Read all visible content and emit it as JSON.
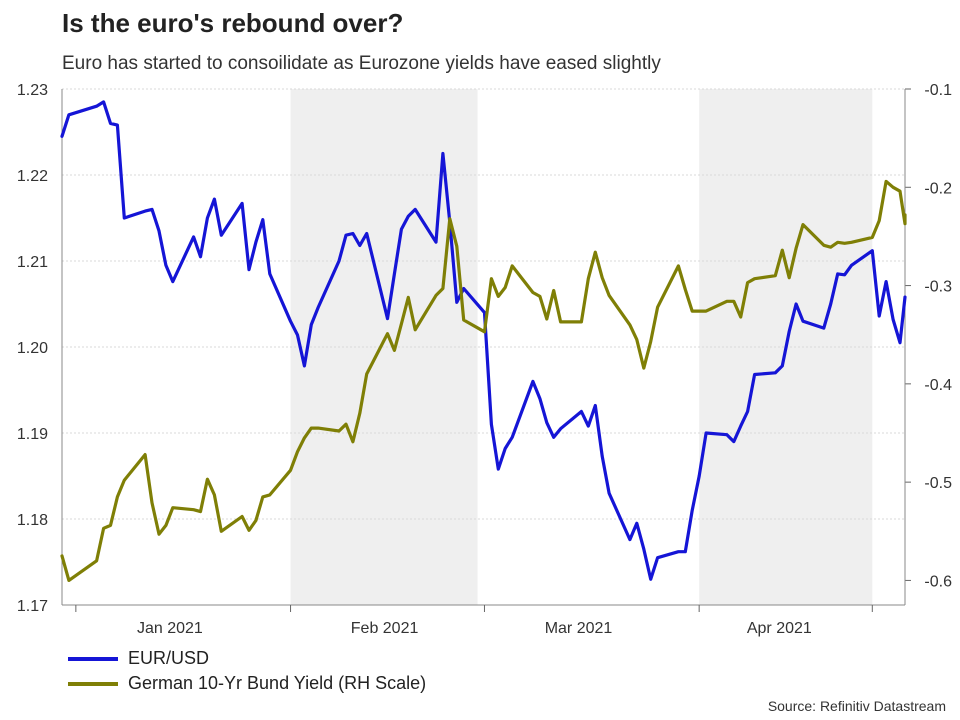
{
  "title": "Is the euro's rebound over?",
  "subtitle": "Euro has started to consoilidate as Eurozone yields have eased slightly",
  "source": "Source: Refinitiv Datastream",
  "colors": {
    "eurusd": "#1515d6",
    "bund": "#7f7f06",
    "shade": "#efefef",
    "grid": "#d9d9d9"
  },
  "chart_data": {
    "type": "line",
    "title": "Is the euro's rebound over?",
    "legend_position": "bottom-left",
    "grid": true,
    "x_labels": [
      "Jan 2021",
      "Feb 2021",
      "Mar 2021",
      "Apr 2021"
    ],
    "x_range": [
      "2020-12-30",
      "2021-04-30"
    ],
    "shaded_months": [
      [
        "2021-02-01",
        "2021-02-28"
      ],
      [
        "2021-04-01",
        "2021-04-26"
      ]
    ],
    "y_left": {
      "ticks": [
        "1.17",
        "1.18",
        "1.19",
        "1.20",
        "1.21",
        "1.22",
        "1.23"
      ],
      "range": [
        1.17,
        1.23
      ]
    },
    "y_right": {
      "ticks": [
        "-0.6",
        "-0.5",
        "-0.4",
        "-0.3",
        "-0.2",
        "-0.1"
      ],
      "range": [
        -0.625,
        -0.1
      ]
    },
    "series": [
      {
        "name": "EUR/USD",
        "axis": "left",
        "points": [
          [
            "2020-12-30",
            1.2245
          ],
          [
            "2020-12-31",
            1.227
          ],
          [
            "2021-01-04",
            1.228
          ],
          [
            "2021-01-05",
            1.2285
          ],
          [
            "2021-01-06",
            1.226
          ],
          [
            "2021-01-07",
            1.2258
          ],
          [
            "2021-01-08",
            1.215
          ],
          [
            "2021-01-11",
            1.2158
          ],
          [
            "2021-01-12",
            1.216
          ],
          [
            "2021-01-13",
            1.2135
          ],
          [
            "2021-01-14",
            1.2095
          ],
          [
            "2021-01-15",
            1.2076
          ],
          [
            "2021-01-18",
            1.2128
          ],
          [
            "2021-01-19",
            1.2105
          ],
          [
            "2021-01-20",
            1.215
          ],
          [
            "2021-01-21",
            1.2172
          ],
          [
            "2021-01-22",
            1.213
          ],
          [
            "2021-01-25",
            1.2167
          ],
          [
            "2021-01-26",
            1.209
          ],
          [
            "2021-01-27",
            1.2122
          ],
          [
            "2021-01-28",
            1.2148
          ],
          [
            "2021-01-29",
            1.2085
          ],
          [
            "2021-02-01",
            1.203
          ],
          [
            "2021-02-02",
            1.2014
          ],
          [
            "2021-02-03",
            1.1978
          ],
          [
            "2021-02-04",
            1.2026
          ],
          [
            "2021-02-05",
            1.2046
          ],
          [
            "2021-02-08",
            1.21
          ],
          [
            "2021-02-09",
            1.213
          ],
          [
            "2021-02-10",
            1.2132
          ],
          [
            "2021-02-11",
            1.2118
          ],
          [
            "2021-02-12",
            1.2132
          ],
          [
            "2021-02-15",
            1.2033
          ],
          [
            "2021-02-16",
            1.2085
          ],
          [
            "2021-02-17",
            1.2137
          ],
          [
            "2021-02-18",
            1.2152
          ],
          [
            "2021-02-19",
            1.216
          ],
          [
            "2021-02-22",
            1.2122
          ],
          [
            "2021-02-23",
            1.2225
          ],
          [
            "2021-02-24",
            1.2145
          ],
          [
            "2021-02-25",
            1.2052
          ],
          [
            "2021-02-26",
            1.2068
          ],
          [
            "2021-03-01",
            1.204
          ],
          [
            "2021-03-02",
            1.191
          ],
          [
            "2021-03-03",
            1.1858
          ],
          [
            "2021-03-04",
            1.1882
          ],
          [
            "2021-03-05",
            1.1895
          ],
          [
            "2021-03-08",
            1.196
          ],
          [
            "2021-03-09",
            1.194
          ],
          [
            "2021-03-10",
            1.1912
          ],
          [
            "2021-03-11",
            1.1895
          ],
          [
            "2021-03-12",
            1.1905
          ],
          [
            "2021-03-15",
            1.1925
          ],
          [
            "2021-03-16",
            1.1908
          ],
          [
            "2021-03-17",
            1.1932
          ],
          [
            "2021-03-18",
            1.1873
          ],
          [
            "2021-03-19",
            1.183
          ],
          [
            "2021-03-22",
            1.1776
          ],
          [
            "2021-03-23",
            1.1795
          ],
          [
            "2021-03-24",
            1.1765
          ],
          [
            "2021-03-25",
            1.173
          ],
          [
            "2021-03-26",
            1.1755
          ],
          [
            "2021-03-29",
            1.1762
          ],
          [
            "2021-03-30",
            1.1762
          ],
          [
            "2021-03-31",
            1.181
          ],
          [
            "2021-04-01",
            1.185
          ],
          [
            "2021-04-02",
            1.19
          ],
          [
            "2021-04-05",
            1.1898
          ],
          [
            "2021-04-06",
            1.189
          ],
          [
            "2021-04-07",
            1.1908
          ],
          [
            "2021-04-08",
            1.1925
          ],
          [
            "2021-04-09",
            1.1968
          ],
          [
            "2021-04-12",
            1.197
          ],
          [
            "2021-04-13",
            1.1978
          ],
          [
            "2021-04-14",
            1.2018
          ],
          [
            "2021-04-15",
            1.205
          ],
          [
            "2021-04-16",
            1.203
          ],
          [
            "2021-04-19",
            1.2022
          ],
          [
            "2021-04-20",
            1.205
          ],
          [
            "2021-04-21",
            1.2085
          ],
          [
            "2021-04-22",
            1.2084
          ],
          [
            "2021-04-23",
            1.2095
          ],
          [
            "2021-04-26",
            1.2112
          ],
          [
            "2021-04-27",
            1.2036
          ],
          [
            "2021-04-28",
            1.2076
          ],
          [
            "2021-04-29",
            1.2032
          ],
          [
            "2021-04-30",
            1.2005
          ],
          [
            "2021-05-03",
            1.2058
          ]
        ]
      },
      {
        "name": "German 10-Yr Bund Yield (RH Scale)",
        "axis": "right",
        "points": [
          [
            "2020-12-30",
            -0.575
          ],
          [
            "2020-12-31",
            -0.6
          ],
          [
            "2021-01-04",
            -0.58
          ],
          [
            "2021-01-05",
            -0.547
          ],
          [
            "2021-01-06",
            -0.544
          ],
          [
            "2021-01-07",
            -0.515
          ],
          [
            "2021-01-08",
            -0.498
          ],
          [
            "2021-01-11",
            -0.472
          ],
          [
            "2021-01-12",
            -0.521
          ],
          [
            "2021-01-13",
            -0.553
          ],
          [
            "2021-01-14",
            -0.544
          ],
          [
            "2021-01-15",
            -0.526
          ],
          [
            "2021-01-18",
            -0.528
          ],
          [
            "2021-01-19",
            -0.53
          ],
          [
            "2021-01-20",
            -0.497
          ],
          [
            "2021-01-21",
            -0.513
          ],
          [
            "2021-01-22",
            -0.55
          ],
          [
            "2021-01-25",
            -0.535
          ],
          [
            "2021-01-26",
            -0.549
          ],
          [
            "2021-01-27",
            -0.539
          ],
          [
            "2021-01-28",
            -0.515
          ],
          [
            "2021-01-29",
            -0.513
          ],
          [
            "2021-02-01",
            -0.488
          ],
          [
            "2021-02-02",
            -0.469
          ],
          [
            "2021-02-03",
            -0.455
          ],
          [
            "2021-02-04",
            -0.445
          ],
          [
            "2021-02-05",
            -0.445
          ],
          [
            "2021-02-08",
            -0.448
          ],
          [
            "2021-02-09",
            -0.441
          ],
          [
            "2021-02-10",
            -0.459
          ],
          [
            "2021-02-11",
            -0.43
          ],
          [
            "2021-02-12",
            -0.39
          ],
          [
            "2021-02-15",
            -0.349
          ],
          [
            "2021-02-16",
            -0.366
          ],
          [
            "2021-02-17",
            -0.339
          ],
          [
            "2021-02-18",
            -0.312
          ],
          [
            "2021-02-19",
            -0.345
          ],
          [
            "2021-02-22",
            -0.31
          ],
          [
            "2021-02-23",
            -0.303
          ],
          [
            "2021-02-24",
            -0.232
          ],
          [
            "2021-02-25",
            -0.26
          ],
          [
            "2021-02-26",
            -0.335
          ],
          [
            "2021-03-01",
            -0.347
          ],
          [
            "2021-03-02",
            -0.293
          ],
          [
            "2021-03-03",
            -0.311
          ],
          [
            "2021-03-04",
            -0.302
          ],
          [
            "2021-03-05",
            -0.28
          ],
          [
            "2021-03-08",
            -0.307
          ],
          [
            "2021-03-09",
            -0.311
          ],
          [
            "2021-03-10",
            -0.334
          ],
          [
            "2021-03-11",
            -0.305
          ],
          [
            "2021-03-12",
            -0.337
          ],
          [
            "2021-03-15",
            -0.337
          ],
          [
            "2021-03-16",
            -0.293
          ],
          [
            "2021-03-17",
            -0.266
          ],
          [
            "2021-03-18",
            -0.292
          ],
          [
            "2021-03-19",
            -0.31
          ],
          [
            "2021-03-22",
            -0.34
          ],
          [
            "2021-03-23",
            -0.355
          ],
          [
            "2021-03-24",
            -0.384
          ],
          [
            "2021-03-25",
            -0.357
          ],
          [
            "2021-03-26",
            -0.322
          ],
          [
            "2021-03-29",
            -0.28
          ],
          [
            "2021-03-30",
            -0.304
          ],
          [
            "2021-03-31",
            -0.326
          ],
          [
            "2021-04-01",
            -0.326
          ],
          [
            "2021-04-02",
            -0.326
          ],
          [
            "2021-04-05",
            -0.316
          ],
          [
            "2021-04-06",
            -0.316
          ],
          [
            "2021-04-07",
            -0.332
          ],
          [
            "2021-04-08",
            -0.297
          ],
          [
            "2021-04-09",
            -0.293
          ],
          [
            "2021-04-12",
            -0.29
          ],
          [
            "2021-04-13",
            -0.264
          ],
          [
            "2021-04-14",
            -0.292
          ],
          [
            "2021-04-15",
            -0.262
          ],
          [
            "2021-04-16",
            -0.238
          ],
          [
            "2021-04-19",
            -0.259
          ],
          [
            "2021-04-20",
            -0.261
          ],
          [
            "2021-04-21",
            -0.256
          ],
          [
            "2021-04-22",
            -0.257
          ],
          [
            "2021-04-23",
            -0.256
          ],
          [
            "2021-04-26",
            -0.251
          ],
          [
            "2021-04-27",
            -0.234
          ],
          [
            "2021-04-28",
            -0.194
          ],
          [
            "2021-04-29",
            -0.2
          ],
          [
            "2021-04-30",
            -0.204
          ],
          [
            "2021-05-03",
            -0.237
          ],
          [
            "2021-05-04",
            -0.228
          ],
          [
            "2021-05-05",
            -0.231
          ]
        ]
      }
    ]
  }
}
